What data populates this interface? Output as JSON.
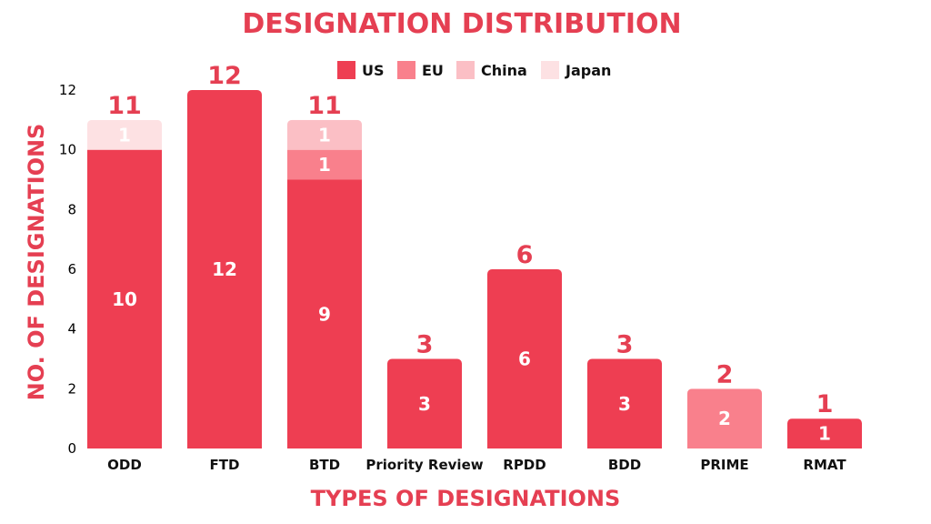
{
  "chart_data": {
    "type": "bar",
    "stacked": true,
    "title": "DESIGNATION DISTRIBUTION",
    "xlabel": "TYPES OF DESIGNATIONS",
    "ylabel": "NO. OF DESIGNATIONS",
    "ylim": [
      0,
      12
    ],
    "yticks": [
      0,
      2,
      4,
      6,
      8,
      10,
      12
    ],
    "grid": false,
    "legend_position": "top",
    "categories": [
      "ODD",
      "FTD",
      "BTD",
      "Priority Review",
      "RPDD",
      "BDD",
      "PRIME",
      "RMAT"
    ],
    "series": [
      {
        "name": "US",
        "color": "#ee3e52",
        "values": [
          10,
          12,
          9,
          3,
          6,
          3,
          0,
          1
        ]
      },
      {
        "name": "EU",
        "color": "#f9808c",
        "values": [
          0,
          0,
          1,
          0,
          0,
          0,
          2,
          0
        ]
      },
      {
        "name": "China",
        "color": "#fbbfc5",
        "values": [
          0,
          0,
          1,
          0,
          0,
          0,
          0,
          0
        ]
      },
      {
        "name": "Japan",
        "color": "#fde1e3",
        "values": [
          1,
          0,
          0,
          0,
          0,
          0,
          0,
          0
        ]
      }
    ],
    "totals": [
      11,
      12,
      11,
      3,
      6,
      3,
      2,
      1
    ],
    "accent_color": "#e53f52"
  }
}
